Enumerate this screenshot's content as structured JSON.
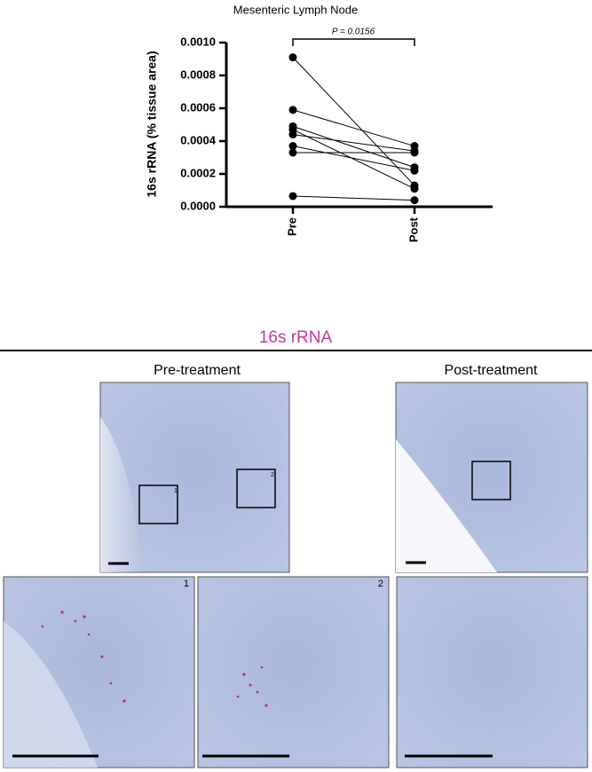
{
  "chart_data": {
    "type": "line",
    "title": "Mesenteric Lymph Node",
    "y_label": "16s rRNA (% tissue area)",
    "annotation": "P = 0.0156",
    "categories": [
      "Pre",
      "Post"
    ],
    "color": "#000000",
    "series": [
      {
        "values": [
          0.00091,
          0.00013
        ]
      },
      {
        "values": [
          0.00059,
          0.00037
        ]
      },
      {
        "values": [
          0.00049,
          0.00024
        ]
      },
      {
        "values": [
          0.00047,
          0.00011
        ]
      },
      {
        "values": [
          0.00044,
          0.00034
        ]
      },
      {
        "values": [
          0.00037,
          0.00022
        ]
      },
      {
        "values": [
          0.00033,
          0.00033
        ]
      },
      {
        "values": [
          6.5e-05,
          4e-05
        ]
      }
    ],
    "ylim": [
      0,
      0.001
    ],
    "yticks": [
      {
        "value": 0,
        "label": "0.0000"
      },
      {
        "value": 0.0002,
        "label": "0.0002"
      },
      {
        "value": 0.0004,
        "label": "0.0004"
      },
      {
        "value": 0.0006,
        "label": "0.0006"
      },
      {
        "value": 0.0008,
        "label": "0.0008"
      },
      {
        "value": 0.001,
        "label": "0.0010"
      }
    ]
  },
  "figure": {
    "stain": "16s rRNA",
    "columns": [
      "Pre-treatment",
      "Post-treatment"
    ],
    "inset_labels": [
      "1",
      "2"
    ]
  }
}
